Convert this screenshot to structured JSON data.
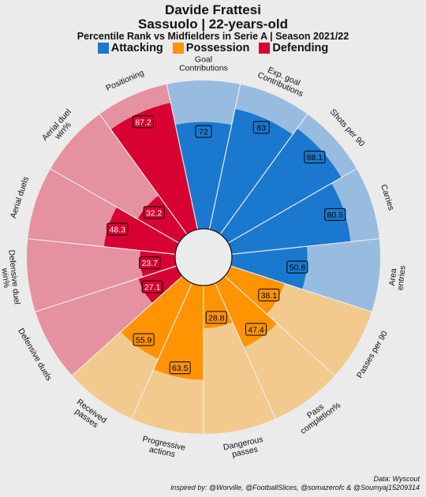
{
  "header": {
    "title_line1": "Davide Frattesi",
    "title_line2": "Sassuolo | 22-years-old",
    "subtitle": "Percentile Rank vs Midfielders in Serie A | Season 2021/22"
  },
  "legend": [
    {
      "label": "Attacking",
      "color": "#1a78cf"
    },
    {
      "label": "Possession",
      "color": "#ff9300"
    },
    {
      "label": "Defending",
      "color": "#d70232"
    }
  ],
  "colors": {
    "Attacking": {
      "fill": "#1a78cf",
      "bg": "#97bce0"
    },
    "Possession": {
      "fill": "#ff9300",
      "bg": "#f2ca8e"
    },
    "Defending": {
      "fill": "#d70232",
      "bg": "#e5919f"
    },
    "background": "#ebebeb"
  },
  "chart_data": {
    "type": "polar-bar",
    "scale": [
      0,
      100
    ],
    "categories": [
      {
        "label": "Goal\nContributions",
        "value": 72,
        "value_label": "72",
        "group": "Attacking"
      },
      {
        "label": "Exp. goal\nContributions",
        "value": 83,
        "value_label": "83",
        "group": "Attacking"
      },
      {
        "label": "Shots per 90",
        "value": 88.1,
        "value_label": "88.1",
        "group": "Attacking"
      },
      {
        "label": "Carries",
        "value": 80.5,
        "value_label": "80.5",
        "group": "Attacking"
      },
      {
        "label": "Area\nentries",
        "value": 50.8,
        "value_label": "50.8",
        "group": "Attacking"
      },
      {
        "label": "Passes per 90",
        "value": 38.1,
        "value_label": "38.1",
        "group": "Possession"
      },
      {
        "label": "Pass\ncompletion%",
        "value": 47.4,
        "value_label": "47.4",
        "group": "Possession"
      },
      {
        "label": "Dangerous\npasses",
        "value": 28.8,
        "value_label": "28.8",
        "group": "Possession"
      },
      {
        "label": "Progressive\nactions",
        "value": 63.5,
        "value_label": "63.5",
        "group": "Possession"
      },
      {
        "label": "Received\npasses",
        "value": 55.9,
        "value_label": "55.9",
        "group": "Possession"
      },
      {
        "label": "Defensive duels",
        "value": 27.1,
        "value_label": "27.1",
        "group": "Defending"
      },
      {
        "label": "Defensive duel\nwin%",
        "value": 23.7,
        "value_label": "23.7",
        "group": "Defending"
      },
      {
        "label": "Aerial duels",
        "value": 48.3,
        "value_label": "48.3",
        "group": "Defending"
      },
      {
        "label": "Aerial duel\nwin%",
        "value": 32.2,
        "value_label": "32.2",
        "group": "Defending"
      },
      {
        "label": "Positioning",
        "value": 87.2,
        "value_label": "87.2",
        "group": "Defending"
      }
    ]
  },
  "footer": {
    "line1": "Data: Wyscout",
    "line2": "inspired by: @Worville, @FootballSlices, @somazerofc & @Soumyaj15209314"
  }
}
